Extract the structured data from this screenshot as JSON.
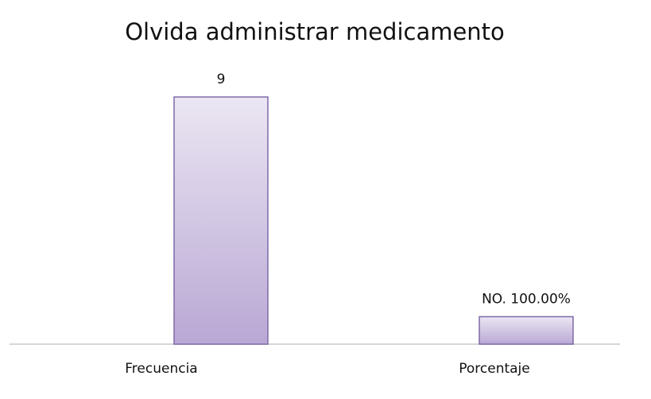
{
  "chart_data": {
    "type": "bar",
    "title": "Olvida administrar medicamento",
    "categories": [
      "Frecuencia",
      "Porcentaje"
    ],
    "values": [
      9,
      1
    ],
    "value_labels": [
      "9",
      "NO. 100.00%"
    ],
    "color": "#b9a8d4",
    "grid": false
  }
}
